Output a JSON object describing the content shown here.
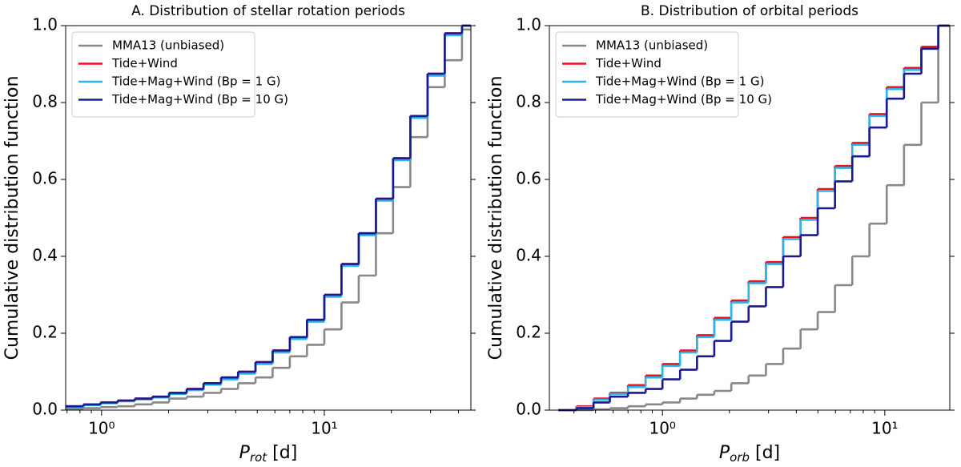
{
  "chart_data": [
    {
      "type": "step",
      "title": "A. Distribution of stellar rotation periods",
      "xlabel": {
        "symbol": "P",
        "subscript": "rot",
        "unit": " [d]"
      },
      "ylabel": "Cumulative distribution function",
      "log_x": true,
      "xlim": [
        0.69,
        45.5
      ],
      "ylim": [
        0,
        1
      ],
      "xticks": [
        {
          "value": 1,
          "label": "10⁰"
        },
        {
          "value": 10,
          "label": "10¹"
        }
      ],
      "xminor_ticks": [
        0.7,
        0.8,
        0.9,
        2,
        3,
        4,
        5,
        6,
        7,
        8,
        9,
        20,
        30,
        40
      ],
      "yticks": [
        {
          "value": 0,
          "label": "0.0"
        },
        {
          "value": 0.2,
          "label": "0.2"
        },
        {
          "value": 0.4,
          "label": "0.4"
        },
        {
          "value": 0.6,
          "label": "0.6"
        },
        {
          "value": 0.8,
          "label": "0.8"
        },
        {
          "value": 1,
          "label": "1.0"
        }
      ],
      "legend": "upper left",
      "x": [
        0.69,
        0.83,
        0.99,
        1.18,
        1.41,
        1.69,
        2.01,
        2.41,
        2.87,
        3.44,
        4.1,
        4.91,
        5.86,
        7.0,
        8.36,
        10.0,
        11.94,
        14.27,
        17.05,
        20.36,
        24.33,
        29.07,
        34.73,
        41.5
      ],
      "series": [
        {
          "name": "MMA13 (unbiased)",
          "color": "#888888",
          "values": [
            0.003,
            0.005,
            0.008,
            0.01,
            0.015,
            0.02,
            0.03,
            0.035,
            0.045,
            0.055,
            0.07,
            0.085,
            0.11,
            0.14,
            0.17,
            0.21,
            0.28,
            0.35,
            0.46,
            0.58,
            0.71,
            0.84,
            0.91,
            0.99
          ]
        },
        {
          "name": "Tide+Wind",
          "color": "#e8141c",
          "values": [
            0.01,
            0.015,
            0.02,
            0.025,
            0.03,
            0.035,
            0.045,
            0.055,
            0.07,
            0.085,
            0.1,
            0.125,
            0.155,
            0.19,
            0.235,
            0.3,
            0.38,
            0.46,
            0.55,
            0.655,
            0.765,
            0.875,
            0.98,
            1.0
          ]
        },
        {
          "name": "Tide+Mag+Wind (Bp = 1 G)",
          "color": "#2bb5ea",
          "values": [
            0.008,
            0.013,
            0.018,
            0.023,
            0.028,
            0.033,
            0.042,
            0.052,
            0.066,
            0.08,
            0.095,
            0.12,
            0.15,
            0.185,
            0.23,
            0.295,
            0.375,
            0.455,
            0.545,
            0.65,
            0.76,
            0.87,
            0.975,
            1.0
          ]
        },
        {
          "name": "Tide+Mag+Wind (Bp = 10 G)",
          "color": "#1a1a8c",
          "values": [
            0.01,
            0.015,
            0.02,
            0.025,
            0.03,
            0.035,
            0.045,
            0.055,
            0.07,
            0.085,
            0.1,
            0.125,
            0.155,
            0.19,
            0.235,
            0.3,
            0.38,
            0.46,
            0.55,
            0.655,
            0.765,
            0.875,
            0.98,
            1.0
          ]
        }
      ]
    },
    {
      "type": "step",
      "title": "B. Distribution of orbital periods",
      "xlabel": {
        "symbol": "P",
        "subscript": "orb",
        "unit": " [d]"
      },
      "ylabel": "Cumulative distribution function",
      "log_x": true,
      "xlim": [
        0.31,
        19.6
      ],
      "ylim": [
        0,
        1
      ],
      "xticks": [
        {
          "value": 1,
          "label": "10⁰"
        },
        {
          "value": 10,
          "label": "10¹"
        }
      ],
      "xminor_ticks": [
        0.4,
        0.5,
        0.6,
        0.7,
        0.8,
        0.9,
        2,
        3,
        4,
        5,
        6,
        7,
        8,
        9
      ],
      "yticks": [
        {
          "value": 0,
          "label": "0.0"
        },
        {
          "value": 0.2,
          "label": "0.2"
        },
        {
          "value": 0.4,
          "label": "0.4"
        },
        {
          "value": 0.6,
          "label": "0.6"
        },
        {
          "value": 0.8,
          "label": "0.8"
        },
        {
          "value": 1,
          "label": "1.0"
        }
      ],
      "legend": "upper left",
      "x": [
        0.34,
        0.41,
        0.49,
        0.58,
        0.7,
        0.84,
        1.0,
        1.2,
        1.43,
        1.71,
        2.04,
        2.44,
        2.92,
        3.49,
        4.18,
        4.99,
        5.97,
        7.14,
        8.53,
        10.2,
        12.2,
        14.6,
        17.4
      ],
      "series": [
        {
          "name": "MMA13 (unbiased)",
          "color": "#888888",
          "values": [
            0,
            0,
            0.002,
            0.005,
            0.01,
            0.015,
            0.02,
            0.03,
            0.04,
            0.05,
            0.07,
            0.09,
            0.12,
            0.16,
            0.21,
            0.255,
            0.325,
            0.4,
            0.485,
            0.585,
            0.69,
            0.8,
            1.0
          ]
        },
        {
          "name": "Tide+Wind",
          "color": "#e8141c",
          "values": [
            0,
            0.01,
            0.03,
            0.045,
            0.065,
            0.09,
            0.12,
            0.155,
            0.195,
            0.24,
            0.285,
            0.335,
            0.385,
            0.45,
            0.5,
            0.575,
            0.635,
            0.695,
            0.77,
            0.84,
            0.89,
            0.945,
            1.0
          ]
        },
        {
          "name": "Tide+Mag+Wind (Bp = 1 G)",
          "color": "#2bb5ea",
          "values": [
            0,
            0.008,
            0.027,
            0.042,
            0.06,
            0.085,
            0.115,
            0.15,
            0.19,
            0.235,
            0.28,
            0.33,
            0.38,
            0.445,
            0.495,
            0.57,
            0.63,
            0.69,
            0.765,
            0.835,
            0.885,
            0.94,
            1.0
          ]
        },
        {
          "name": "Tide+Mag+Wind (Bp = 10 G)",
          "color": "#1a1a8c",
          "values": [
            0,
            0.005,
            0.02,
            0.035,
            0.045,
            0.055,
            0.08,
            0.105,
            0.14,
            0.18,
            0.23,
            0.27,
            0.32,
            0.4,
            0.455,
            0.525,
            0.595,
            0.66,
            0.735,
            0.81,
            0.875,
            0.94,
            1.0
          ]
        }
      ]
    }
  ]
}
